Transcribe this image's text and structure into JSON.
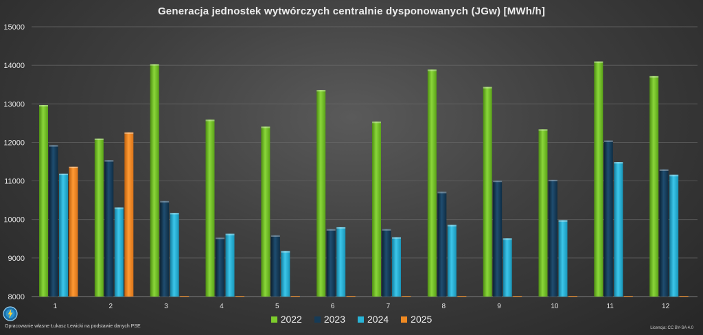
{
  "title": "Generacja jednostek wytwórczych centralnie dysponowanych (JGw) [MWh/h]",
  "credit": "Opracowanie własne Łukasz Lewicki na podstawie danych PSE",
  "license": "Licencja: CC BY-SA 4.0",
  "chart_data": {
    "type": "bar",
    "title": "Generacja jednostek wytwórczych centralnie dysponowanych (JGw) [MWh/h]",
    "xlabel": "",
    "ylabel": "",
    "categories": [
      "1",
      "2",
      "3",
      "4",
      "5",
      "6",
      "7",
      "8",
      "9",
      "10",
      "11",
      "12"
    ],
    "ylim": [
      8000,
      15000
    ],
    "yticks": [
      "8000",
      "9000",
      "10000",
      "11000",
      "12000",
      "13000",
      "14000",
      "15000"
    ],
    "grid": true,
    "legend_position": "bottom",
    "series": [
      {
        "name": "2022",
        "color": "#7dcc2c",
        "values": [
          12970,
          12100,
          14030,
          12590,
          12410,
          13360,
          12540,
          13890,
          13440,
          12340,
          14100,
          13720
        ]
      },
      {
        "name": "2023",
        "color": "#163b57",
        "values": [
          11930,
          11540,
          10480,
          9530,
          9590,
          9750,
          9750,
          10720,
          11010,
          11030,
          12050,
          11300
        ]
      },
      {
        "name": "2024",
        "color": "#29b5d8",
        "values": [
          11190,
          10310,
          10170,
          9630,
          9180,
          9800,
          9540,
          9860,
          9510,
          9980,
          11490,
          11160
        ]
      },
      {
        "name": "2025",
        "color": "#f08a22",
        "values": [
          11370,
          12260,
          null,
          null,
          null,
          null,
          null,
          null,
          null,
          null,
          null,
          null
        ]
      }
    ]
  }
}
